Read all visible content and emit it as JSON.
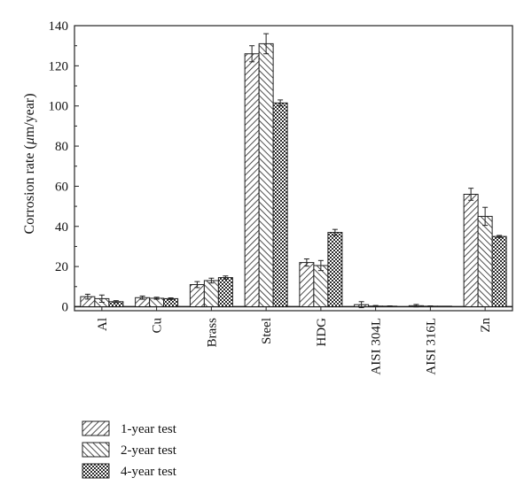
{
  "chart_data": {
    "type": "bar",
    "title": "",
    "xlabel": "",
    "ylabel_parts": [
      "Corrosion rate (",
      "μ",
      "m/year)"
    ],
    "ylim": [
      -2,
      140
    ],
    "yticks": [
      "0",
      "20",
      "40",
      "60",
      "80",
      "100",
      "120",
      "140"
    ],
    "ytick_values": [
      0,
      20,
      40,
      60,
      80,
      100,
      120,
      140
    ],
    "categories": [
      "Al",
      "Cu",
      "Brass",
      "Steel",
      "HDG",
      "AISI 304L",
      "AISI 316L",
      "Zn"
    ],
    "series": [
      {
        "name": "1-year test",
        "values": [
          5.0,
          4.5,
          11.0,
          126.0,
          22.0,
          1.0,
          0.5,
          56.0
        ],
        "errors": [
          1.2,
          0.8,
          1.5,
          4.0,
          1.8,
          1.5,
          0.6,
          3.0
        ]
      },
      {
        "name": "2-year test",
        "values": [
          4.0,
          4.2,
          13.0,
          131.0,
          20.5,
          0.3,
          0.2,
          45.0
        ],
        "errors": [
          1.8,
          0.5,
          1.2,
          5.0,
          2.5,
          0.3,
          0.2,
          4.5
        ]
      },
      {
        "name": "4-year test",
        "values": [
          2.5,
          4.0,
          14.5,
          101.5,
          37.0,
          0.2,
          0.1,
          35.0
        ],
        "errors": [
          0.5,
          0.4,
          0.8,
          1.5,
          1.5,
          0.2,
          0.1,
          0.5
        ]
      }
    ],
    "legend_position": "bottom-left",
    "grid": false,
    "colors": {
      "bar_stroke": "#222222",
      "pattern_ink": "#222222",
      "background": "#ffffff"
    }
  }
}
